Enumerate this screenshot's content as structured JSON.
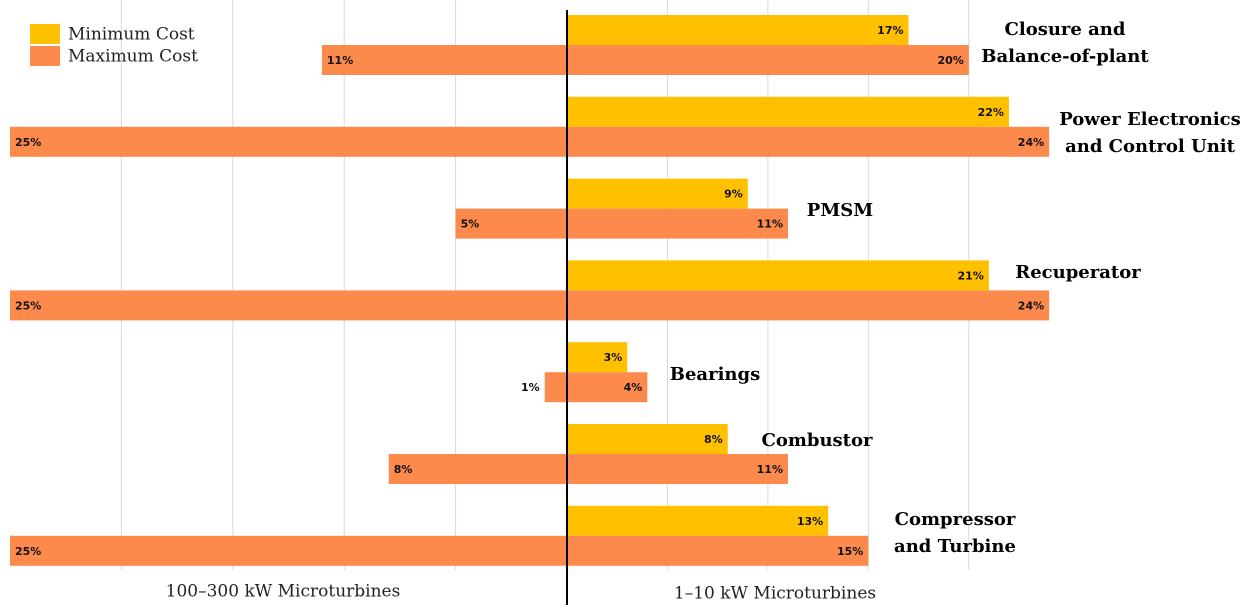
{
  "chart_data": {
    "type": "diverging-bar",
    "categories": [
      "Closure and\nBalance-of-plant",
      "Power Electronics\nand Control Unit",
      "PMSM",
      "Recuperator",
      "Bearings",
      "Combustor",
      "Compressor\nand Turbine"
    ],
    "series": [
      {
        "name": "Minimum Cost",
        "color": "#ffc000",
        "values": [
          17,
          22,
          9,
          21,
          3,
          8,
          13
        ],
        "value_labels": [
          "17%",
          "22%",
          "9%",
          "21%",
          "3%",
          "8%",
          "13%"
        ]
      },
      {
        "name": "Maximum Cost",
        "color": "#fb8a4c",
        "values": [
          20,
          24,
          11,
          24,
          4,
          11,
          15
        ],
        "value_labels": [
          "20%",
          "24%",
          "11%",
          "24%",
          "4%",
          "11%",
          "15%"
        ],
        "left_values": [
          11,
          25,
          5,
          25,
          1,
          8,
          25
        ],
        "left_value_labels": [
          "11%",
          "25%",
          "5%",
          "25%",
          "1%",
          "8%",
          "25%"
        ]
      }
    ],
    "left_label": "100–300 kW Microturbines",
    "right_label": "1–10 kW Microturbines",
    "xlim_left": [
      0,
      25
    ],
    "xticks_left": [
      5,
      10,
      15,
      20
    ],
    "xlim_right": [
      0,
      33.5
    ],
    "xticks_right": [
      5,
      10,
      15,
      20
    ],
    "grid": true
  }
}
